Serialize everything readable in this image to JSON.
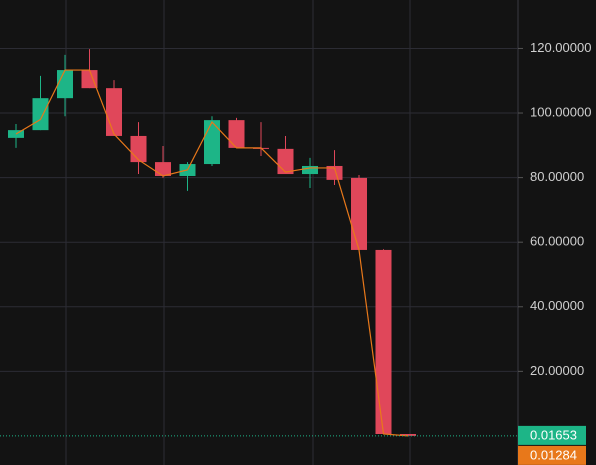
{
  "chart_data": {
    "type": "candlestick",
    "categories": [
      null,
      null,
      null,
      null,
      null,
      null,
      null,
      null,
      null,
      null,
      null,
      null,
      null,
      null,
      null,
      null,
      null
    ],
    "open": [
      92.3,
      94.7,
      104.6,
      113.3,
      107.7,
      92.9,
      84.8,
      80.5,
      84.2,
      97.8,
      89.2,
      88.9,
      81.1,
      83.6,
      79.9,
      57.6,
      0.6
    ],
    "high": [
      96.6,
      111.5,
      118,
      119.8,
      110.2,
      97.2,
      89.8,
      84.8,
      99,
      98.5,
      97.2,
      92.9,
      86.1,
      88.5,
      80.8,
      57.8,
      0.6
    ],
    "low": [
      89.2,
      94.7,
      99,
      107.7,
      92.9,
      81.1,
      79.9,
      75.9,
      83.6,
      89.2,
      86.7,
      81.1,
      76.8,
      77.7,
      57.6,
      0.6,
      0.01
    ],
    "close": [
      94.7,
      104.6,
      113.3,
      107.7,
      92.9,
      84.8,
      80.5,
      84.2,
      97.8,
      89.2,
      88.9,
      81.1,
      83.6,
      79.3,
      57.6,
      0.6,
      0.01653
    ],
    "up_color": "#1db587",
    "down_color": "#e0475a",
    "line": {
      "color": "#e8781a",
      "values": [
        93.5,
        98,
        113.3,
        113.3,
        93.5,
        85.5,
        80.5,
        82.4,
        97.2,
        89.2,
        89.2,
        81.7,
        83,
        83,
        57.6,
        0.6,
        0.01284
      ]
    },
    "ylim": [
      -9,
      135
    ],
    "yticks": [
      {
        "value": 20,
        "label": "20.00000"
      },
      {
        "value": 40,
        "label": "40.00000"
      },
      {
        "value": 60,
        "label": "60.00000"
      },
      {
        "value": 80,
        "label": "80.00000"
      },
      {
        "value": 100,
        "label": "100.00000"
      },
      {
        "value": 120,
        "label": "120.00000"
      }
    ],
    "grid": true,
    "price_tags": [
      {
        "value": 0.01653,
        "color": "#1db587"
      },
      {
        "value": 0.01284,
        "color": "#e8781a"
      }
    ]
  }
}
